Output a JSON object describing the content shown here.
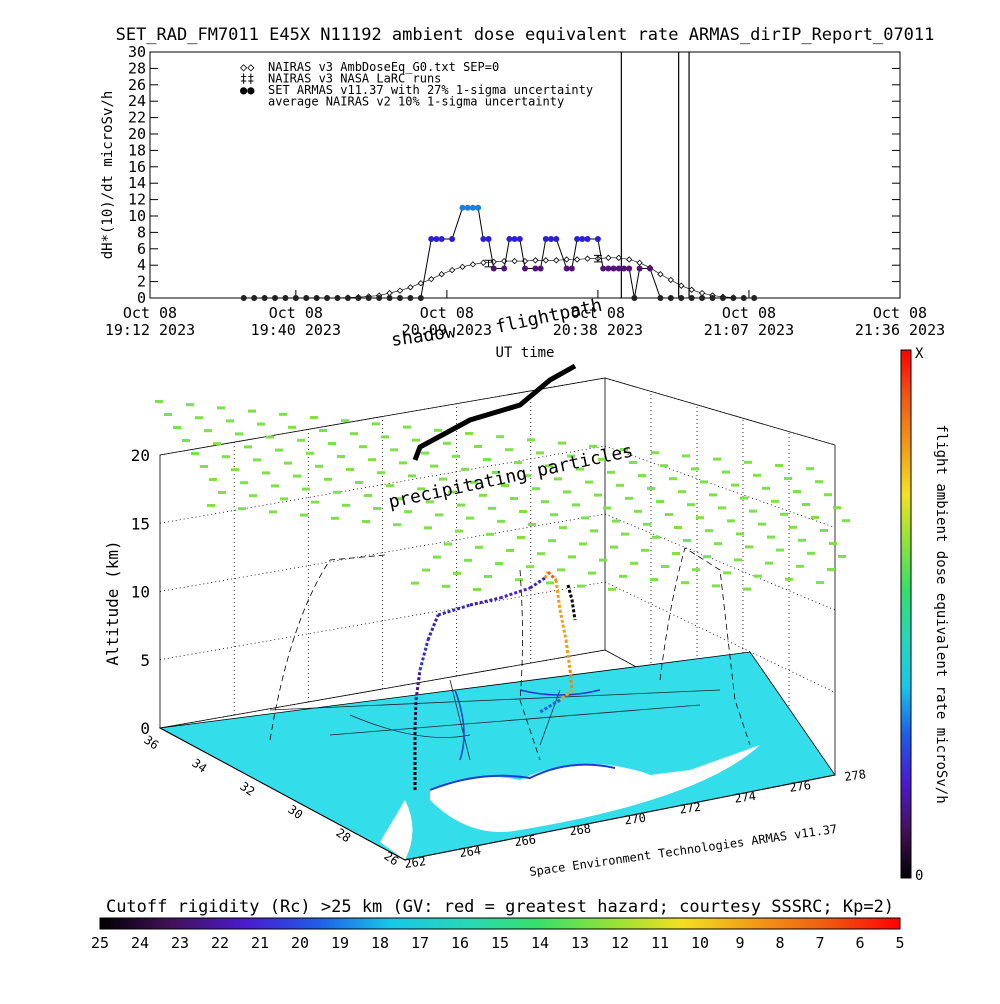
{
  "colors": {
    "series_set": "#2a1fd6",
    "series_set_high": "#1b7fe0",
    "series_set_low": "#55127a",
    "nairas_v3": "#000000",
    "map_fill": "#33ddea",
    "grid": "#000000",
    "precip": "#7ee04a",
    "colorbar_stops": [
      "#000000",
      "#44115c",
      "#4a1ad0",
      "#1e5ee8",
      "#18c7ea",
      "#27d7b9",
      "#35df6a",
      "#8fe33a",
      "#f3e021",
      "#f29b16",
      "#f05a12",
      "#ff0000"
    ]
  },
  "chart_data": [
    {
      "type": "line",
      "title": "SET_RAD_FM7011  E45X N11192 ambient dose equivalent rate ARMAS_dirIP_Report_07011",
      "ylabel": "dH*(10)/dt microSv/h",
      "xlabel": "UT time",
      "ylim": [
        0,
        30
      ],
      "y_ticks": [
        "0",
        "2",
        "4",
        "6",
        "8",
        "10",
        "12",
        "14",
        "16",
        "18",
        "20",
        "22",
        "24",
        "26",
        "28",
        "30"
      ],
      "x_ticks": [
        {
          "line1": "Oct 08",
          "line2": "19:12 2023",
          "t": 0
        },
        {
          "line1": "Oct 08",
          "line2": "19:40 2023",
          "t": 28
        },
        {
          "line1": "Oct 08",
          "line2": "20:09 2023",
          "t": 57
        },
        {
          "line1": "Oct 08",
          "line2": "20:38 2023",
          "t": 86
        },
        {
          "line1": "Oct 08",
          "line2": "21:07 2023",
          "t": 115
        },
        {
          "line1": "Oct 08",
          "line2": "21:36 2023",
          "t": 144
        }
      ],
      "legend": [
        {
          "symbol": "◇◇",
          "label": "NAIRAS v3 AmbDoseEq_G0.txt SEP=0"
        },
        {
          "symbol": "‡‡",
          "label": "NAIRAS v3 NASA LaRC runs"
        },
        {
          "symbol": "●●",
          "label": "SET ARMAS v11.37 with 27% 1-sigma uncertainty"
        },
        {
          "symbol": "",
          "label": "average NAIRAS v2 10% 1-sigma uncertainty"
        }
      ],
      "vertical_markers_t": [
        90.5,
        101.5,
        103.5
      ],
      "series": [
        {
          "name": "SET ARMAS v11.37 with 27% 1-sigma uncertainty",
          "x": [
            18,
            20,
            22,
            24,
            26,
            28,
            30,
            32,
            34,
            36,
            38,
            40,
            42,
            44,
            46,
            48,
            50,
            52,
            54,
            55,
            56,
            58,
            60,
            61,
            62,
            63,
            64,
            65,
            66,
            68,
            69,
            70,
            71,
            72,
            74,
            75,
            76,
            77,
            78,
            80,
            81,
            82,
            83,
            84,
            86,
            87,
            88,
            89,
            90,
            91,
            92,
            93,
            94,
            96,
            98,
            100,
            102,
            104,
            106,
            108,
            110,
            112,
            114,
            116
          ],
          "y": [
            0,
            0,
            0,
            0,
            0,
            0,
            0,
            0,
            0,
            0,
            0,
            0,
            0,
            0,
            0,
            0,
            0,
            0,
            7.2,
            7.2,
            7.2,
            7.2,
            11,
            11,
            11,
            11,
            7.2,
            7.2,
            3.6,
            3.6,
            7.2,
            7.2,
            7.2,
            3.6,
            3.6,
            3.6,
            7.2,
            7.2,
            7.2,
            3.6,
            3.6,
            7.2,
            7.2,
            7.2,
            7.2,
            3.6,
            3.6,
            3.6,
            3.6,
            3.6,
            3.6,
            0,
            3.6,
            3.6,
            0,
            0,
            0,
            0,
            0,
            0,
            0,
            0,
            0,
            0
          ]
        },
        {
          "name": "NAIRAS v3 AmbDoseEq_G0.txt SEP=0",
          "x": [
            18,
            22,
            26,
            30,
            34,
            38,
            40,
            42,
            44,
            46,
            48,
            50,
            52,
            54,
            56,
            58,
            60,
            62,
            64,
            66,
            68,
            70,
            72,
            74,
            76,
            78,
            80,
            82,
            84,
            86,
            88,
            90,
            92,
            94,
            96,
            98,
            100,
            102,
            104,
            106,
            108,
            110,
            112,
            114,
            116
          ],
          "y": [
            0,
            0,
            0,
            0,
            0,
            0.05,
            0.1,
            0.2,
            0.3,
            0.6,
            0.9,
            1.3,
            1.8,
            2.3,
            2.9,
            3.4,
            3.8,
            4.1,
            4.3,
            4.4,
            4.5,
            4.5,
            4.5,
            4.6,
            4.6,
            4.6,
            4.7,
            4.7,
            4.8,
            4.8,
            4.9,
            4.9,
            4.7,
            4.3,
            3.7,
            2.9,
            2.2,
            1.5,
            1.0,
            0.6,
            0.3,
            0.15,
            0.05,
            0,
            0
          ]
        }
      ],
      "error_bars": [
        {
          "t": 65,
          "y": 4.2,
          "err": 0.4
        },
        {
          "t": 86,
          "y": 4.8,
          "err": 0.4
        }
      ]
    },
    {
      "type": "scatter",
      "title": "flightpath",
      "labels": {
        "shadow": "shadow",
        "flightpath": "flightpath",
        "precipitating": "precipitating particles",
        "credit": "Space Environment Technologies ARMAS v11.37"
      },
      "zlabel": "Altitude (km)",
      "zlim": [
        0,
        20
      ],
      "z_ticks": [
        "0",
        "5",
        "10",
        "15",
        "20"
      ],
      "lat_ticks": [
        "36",
        "34",
        "32",
        "30",
        "28",
        "26"
      ],
      "lon_ticks": [
        "262",
        "264",
        "266",
        "268",
        "270",
        "272",
        "274",
        "276",
        "278"
      ],
      "colorbar_right": {
        "label": "flight ambient dose equivalent rate microSv/h",
        "top": "X",
        "bottom": "0"
      }
    },
    {
      "type": "heatmap",
      "title": "Cutoff rigidity (Rc) >25 km (GV: red = greatest hazard; courtesy SSSRC; Kp=2)",
      "colorbar_ticks": [
        "25",
        "24",
        "23",
        "22",
        "21",
        "20",
        "19",
        "18",
        "17",
        "16",
        "15",
        "14",
        "13",
        "12",
        "11",
        "10",
        "9",
        "8",
        "7",
        "6",
        "5"
      ]
    }
  ]
}
